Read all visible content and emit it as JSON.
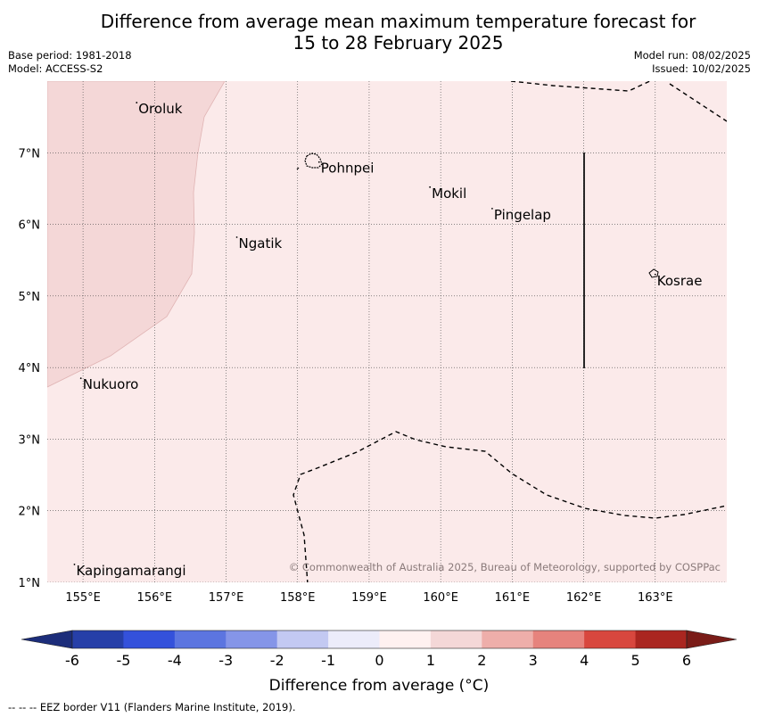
{
  "title": {
    "line1": "Difference from average mean maximum temperature forecast for",
    "line2": "15 to 28 February 2025"
  },
  "meta_left": {
    "base_period": "Base period: 1981-2018",
    "model": "Model: ACCESS-S2"
  },
  "meta_right": {
    "model_run": "Model run: 08/02/2025",
    "issued": "Issued: 10/02/2025"
  },
  "map": {
    "lon_range": [
      154.5,
      164.0
    ],
    "lat_range": [
      1.0,
      8.0
    ],
    "lon_ticks": [
      155,
      156,
      157,
      158,
      159,
      160,
      161,
      162,
      163
    ],
    "lon_labels": [
      "155°E",
      "156°E",
      "157°E",
      "158°E",
      "159°E",
      "160°E",
      "161°E",
      "162°E",
      "163°E"
    ],
    "lat_ticks": [
      1,
      2,
      3,
      4,
      5,
      6,
      7
    ],
    "lat_labels": [
      "1°N",
      "2°N",
      "3°N",
      "4°N",
      "5°N",
      "6°N",
      "7°N"
    ],
    "background_fill": "#fbeaea",
    "anomaly_fill": "#f4d7d7",
    "places": [
      {
        "name": "Oroluk",
        "lon": 155.75,
        "lat": 7.7
      },
      {
        "name": "Pohnpei",
        "lon": 158.3,
        "lat": 6.87
      },
      {
        "name": "Mokil",
        "lon": 159.85,
        "lat": 6.52
      },
      {
        "name": "Pingelap",
        "lon": 160.72,
        "lat": 6.22
      },
      {
        "name": "Ngatik",
        "lon": 157.15,
        "lat": 5.82
      },
      {
        "name": "Kosrae",
        "lon": 163.0,
        "lat": 5.3
      },
      {
        "name": "Nukuoro",
        "lon": 154.97,
        "lat": 3.85
      },
      {
        "name": "Kapingamarangi",
        "lon": 154.88,
        "lat": 1.25
      }
    ],
    "copyright": "© Commonwealth of Australia 2025, Bureau of Meteorology, supported by COSPPac"
  },
  "colorbar": {
    "ticks": [
      "-6",
      "-5",
      "-4",
      "-3",
      "-2",
      "-1",
      "0",
      "1",
      "2",
      "3",
      "4",
      "5",
      "6"
    ],
    "colors": [
      "#263fa8",
      "#3451db",
      "#5c75e0",
      "#8595e8",
      "#c3c9f2",
      "#ececfa",
      "#fff1f0",
      "#f4d7d7",
      "#eeaeaa",
      "#e6837d",
      "#d8473e",
      "#aa2620"
    ],
    "under_color": "#1c2d7a",
    "over_color": "#7a1c18",
    "label": "Difference from average (°C)"
  },
  "footer": "--  --  -- EEZ border V11 (Flanders Marine Institute, 2019)."
}
